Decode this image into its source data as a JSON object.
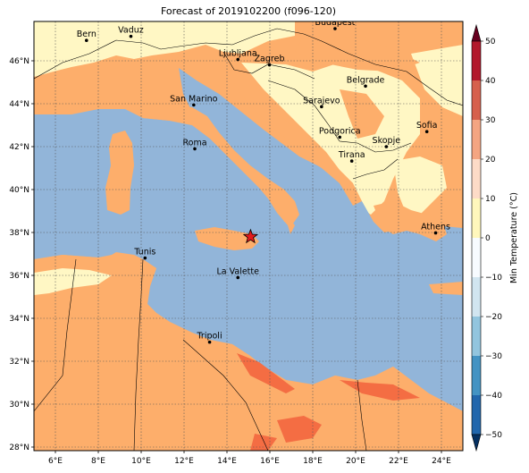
{
  "title": "Forecast of 2019102200 (f096-120)",
  "lon_ticks": [
    "6°E",
    "8°E",
    "10°E",
    "12°E",
    "14°E",
    "16°E",
    "18°E",
    "20°E",
    "22°E",
    "24°E"
  ],
  "lat_ticks": [
    "46°N",
    "44°N",
    "42°N",
    "40°N",
    "38°N",
    "36°N",
    "34°N",
    "32°N",
    "30°N",
    "28°N"
  ],
  "cities": [
    {
      "name": "Bern",
      "lon": 7.45,
      "lat": 46.95
    },
    {
      "name": "Vaduz",
      "lon": 9.52,
      "lat": 47.14
    },
    {
      "name": "Budapest",
      "lon": 19.04,
      "lat": 47.5
    },
    {
      "name": "Ljubljana",
      "lon": 14.51,
      "lat": 46.06
    },
    {
      "name": "Zagreb",
      "lon": 15.98,
      "lat": 45.81
    },
    {
      "name": "Belgrade",
      "lon": 20.46,
      "lat": 44.82
    },
    {
      "name": "San Marino",
      "lon": 12.45,
      "lat": 43.94
    },
    {
      "name": "Sarajevo",
      "lon": 18.41,
      "lat": 43.86
    },
    {
      "name": "Sofia",
      "lon": 23.32,
      "lat": 42.7
    },
    {
      "name": "Podgorica",
      "lon": 19.26,
      "lat": 42.44
    },
    {
      "name": "Skopje",
      "lon": 21.43,
      "lat": 42.0
    },
    {
      "name": "Roma",
      "lon": 12.5,
      "lat": 41.9
    },
    {
      "name": "Tirana",
      "lon": 19.82,
      "lat": 41.33
    },
    {
      "name": "Athens",
      "lon": 23.73,
      "lat": 37.98
    },
    {
      "name": "Tunis",
      "lon": 10.18,
      "lat": 36.81
    },
    {
      "name": "La Valette",
      "lon": 14.51,
      "lat": 35.9
    },
    {
      "name": "Tripoli",
      "lon": 13.19,
      "lat": 32.89
    }
  ],
  "marker": {
    "name": "star-marker",
    "lon": 15.1,
    "lat": 37.8,
    "color": "#e31a1c"
  },
  "colorbar": {
    "label": "Min Temperature (°C)",
    "ticks": [
      "50",
      "40",
      "30",
      "20",
      "10",
      "0",
      "−10",
      "−20",
      "−30",
      "−40",
      "−50"
    ],
    "colors": [
      "#67001f",
      "#b2182b",
      "#d6604d",
      "#f4a582",
      "#fddbc7",
      "#fff7bc",
      "#f7fbff",
      "#d1e5f0",
      "#92c5de",
      "#4393c3",
      "#2166ac",
      "#053061"
    ]
  },
  "palette": {
    "sea": "#92b5d9",
    "land_warm": "#fdae6b",
    "land_mild": "#fff7c4",
    "land_hot": "#f46d43"
  }
}
